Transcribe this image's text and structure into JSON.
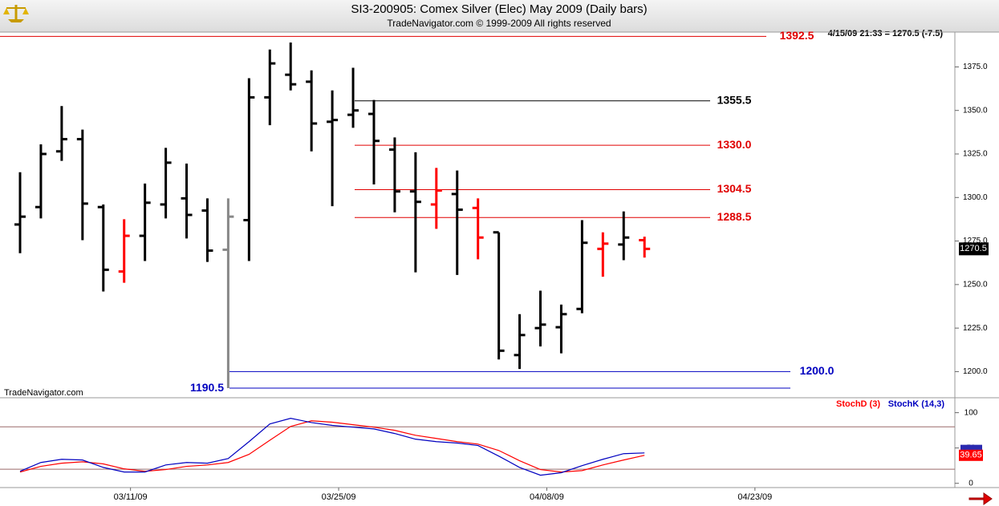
{
  "chart_data": [
    {
      "type": "ohlc",
      "title": "SI3-200905:  Comex Silver (Elec) May 2009  (Daily bars)",
      "subtitle": "TradeNavigator.com © 1999-2009 All rights reserved",
      "info": "4/15/09 21:33 = 1270.5 (-7.5)",
      "watermark": "TradeNavigator.com",
      "categories": [
        null,
        null,
        null,
        null,
        null,
        null,
        "03/11/09",
        null,
        null,
        null,
        null,
        null,
        null,
        null,
        null,
        null,
        "03/25/09",
        null,
        null,
        null,
        null,
        null,
        null,
        null,
        null,
        null,
        "04/08/09",
        null,
        null,
        null,
        null,
        null,
        null,
        null,
        null,
        null,
        "04/23/09"
      ],
      "open": [
        1284.5,
        1294.5,
        1326.5,
        1333.5,
        1294.5,
        1257.5,
        1278,
        1296,
        1299.5,
        1292.5,
        1270,
        1287,
        1357.5,
        1370.5,
        1366.5,
        1343.5,
        1347.5,
        1348,
        1327.5,
        1303.5,
        1296,
        1302,
        1294,
        1280,
        1209.5,
        1225,
        1225.5,
        1236,
        1270.5,
        1273,
        1275.5,
        null,
        null,
        null,
        null,
        null,
        null
      ],
      "high": [
        1314.5,
        1330.5,
        1352.5,
        1339,
        1296,
        1287.5,
        1308,
        1328.5,
        1319.5,
        1299.5,
        1299.5,
        1368.5,
        1385,
        1389,
        1373,
        1361.5,
        1374.5,
        1356,
        1334.5,
        1326,
        1317,
        1315.5,
        1299.5,
        1280,
        1233,
        1246.5,
        1238.5,
        1287,
        1280,
        1292,
        1277.5,
        null,
        null,
        null,
        null,
        null,
        null
      ],
      "low": [
        1268,
        1288,
        1321,
        1275.5,
        1246,
        1251,
        1263.5,
        1288,
        1276.5,
        1263,
        1190.5,
        1263.5,
        1341.5,
        1361.5,
        1326.5,
        1295,
        1340,
        1307.5,
        1291.5,
        1257,
        1282,
        1255.5,
        1264.5,
        1207,
        1201.5,
        1214.5,
        1210.5,
        1233.5,
        1254.5,
        1264,
        1265.5,
        null,
        null,
        null,
        null,
        null,
        null
      ],
      "close": [
        1289,
        1325,
        1333.5,
        1296.5,
        1258.5,
        1278,
        1297,
        1320,
        1290,
        1269.5,
        1289,
        1357.5,
        1377,
        1365,
        1342.5,
        1344.5,
        1350,
        1332.5,
        1303.5,
        1297.5,
        1304,
        1293,
        1277,
        1212,
        1221,
        1227,
        1233,
        1274,
        1273.5,
        1277,
        1270.5,
        null,
        null,
        null,
        null,
        null,
        null
      ],
      "colors": [
        "#000000",
        "#000000",
        "#000000",
        "#000000",
        "#000000",
        "#ff0000",
        "#000000",
        "#000000",
        "#000000",
        "#000000",
        "#888888",
        "#000000",
        "#000000",
        "#000000",
        "#000000",
        "#000000",
        "#000000",
        "#000000",
        "#000000",
        "#000000",
        "#ff0000",
        "#000000",
        "#ff0000",
        "#000000",
        "#000000",
        "#000000",
        "#000000",
        "#000000",
        "#ff0000",
        "#000000",
        "#ff0000",
        null,
        null,
        null,
        null,
        null,
        null
      ],
      "last": 1270.5,
      "ylim": [
        1185,
        1395
      ],
      "yticks": [
        {
          "value": 1200,
          "label": "1200.0"
        },
        {
          "value": 1225,
          "label": "1225.0"
        },
        {
          "value": 1250,
          "label": "1250.0"
        },
        {
          "value": 1275,
          "label": "1275.0"
        },
        {
          "value": 1300,
          "label": "1300.0"
        },
        {
          "value": 1325,
          "label": "1325.0"
        },
        {
          "value": 1350,
          "label": "1350.0"
        },
        {
          "value": 1375,
          "label": "1375.0"
        }
      ],
      "levels": [
        {
          "value": 1392.5,
          "label": "1392.5",
          "color": "#e00000"
        },
        {
          "value": 1355.5,
          "label": "1355.5",
          "color": "#000000"
        },
        {
          "value": 1330,
          "label": "1330.0",
          "color": "#e00000"
        },
        {
          "value": 1304.5,
          "label": "1304.5",
          "color": "#e00000"
        },
        {
          "value": 1288.5,
          "label": "1288.5",
          "color": "#e00000"
        },
        {
          "value": 1200,
          "label": "1200.0",
          "color": "#0000c0"
        },
        {
          "value": 1190.5,
          "label": "1190.5",
          "color": "#0000c0"
        }
      ]
    },
    {
      "type": "line",
      "ylim": [
        -6,
        120
      ],
      "yticks": [
        0,
        50,
        100
      ],
      "levels": [
        80,
        20
      ],
      "series": [
        {
          "name": "StochD (3)",
          "color": "#ff0000",
          "values": [
            16,
            24,
            28.5,
            30.5,
            27.5,
            20.5,
            17,
            19.5,
            24,
            26,
            29.5,
            41,
            61,
            80.5,
            88.5,
            86.5,
            83,
            79.5,
            75,
            68,
            63.5,
            59,
            55.5,
            46.5,
            32,
            19.5,
            16,
            18,
            26,
            33,
            39.65,
            null,
            null,
            null,
            null,
            null,
            null
          ]
        },
        {
          "name": "StochK (14,3)",
          "color": "#0000c0",
          "values": [
            17,
            29.5,
            34,
            33,
            22.5,
            16,
            16,
            26,
            29.5,
            28.5,
            35,
            59,
            84,
            92,
            86,
            82,
            79.5,
            77,
            70.5,
            62.5,
            59,
            57,
            53.5,
            38.5,
            22.5,
            11.5,
            15,
            25,
            34,
            42,
            43,
            null,
            null,
            null,
            null,
            null,
            null
          ]
        }
      ]
    }
  ]
}
